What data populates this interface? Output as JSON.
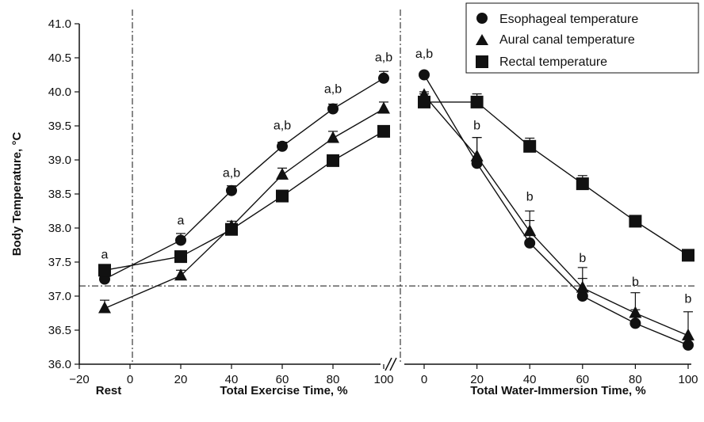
{
  "chart_data": {
    "type": "line",
    "ylabel": "Body Temperature, °C",
    "ylim": [
      36.0,
      41.0
    ],
    "yticks": [
      "36.0",
      "36.5",
      "37.0",
      "37.5",
      "38.0",
      "38.5",
      "39.0",
      "39.5",
      "40.0",
      "40.5",
      "41.0"
    ],
    "reference_line_y": 37.15,
    "legend": {
      "position": "top-right",
      "entries": [
        {
          "label": "Esophageal temperature",
          "marker": "circle"
        },
        {
          "label": "Aural canal temperature",
          "marker": "triangle"
        },
        {
          "label": "Rectal temperature",
          "marker": "square"
        }
      ]
    },
    "panels": [
      {
        "xlabel": "Total Exercise Time, %",
        "xlim": [
          -20,
          100
        ],
        "xticks": [
          "−20",
          "0",
          "20",
          "40",
          "60",
          "80",
          "100"
        ],
        "xtick_values": [
          -20,
          0,
          20,
          40,
          60,
          80,
          100
        ],
        "extra_label": "Rest",
        "x": [
          -10,
          20,
          40,
          60,
          80,
          100
        ],
        "series": [
          {
            "name": "Esophageal temperature",
            "marker": "circle",
            "values": [
              37.25,
              37.82,
              38.55,
              39.2,
              39.75,
              40.2
            ],
            "err": [
              0.05,
              0.1,
              0.07,
              0.06,
              0.07,
              0.1
            ]
          },
          {
            "name": "Aural canal temperature",
            "marker": "triangle",
            "values": [
              36.82,
              37.3,
              38.02,
              38.78,
              39.32,
              39.75
            ],
            "err": [
              0.12,
              0.08,
              0.08,
              0.1,
              0.1,
              0.1
            ]
          },
          {
            "name": "Rectal temperature",
            "marker": "square",
            "values": [
              37.38,
              37.58,
              37.98,
              38.47,
              38.99,
              39.42
            ],
            "err": [
              0.0,
              0.0,
              0.0,
              0.0,
              0.0,
              0.0
            ]
          }
        ],
        "annotations": [
          "a",
          "a",
          "a,b",
          "a,b",
          "a,b",
          "a,b"
        ],
        "annotation_y": [
          37.55,
          38.05,
          38.75,
          39.45,
          39.98,
          40.45
        ]
      },
      {
        "xlabel": "Total Water-Immersion Time, %",
        "xlim": [
          -5,
          100
        ],
        "xticks": [
          "0",
          "20",
          "40",
          "60",
          "80",
          "100"
        ],
        "xtick_values": [
          0,
          20,
          40,
          60,
          80,
          100
        ],
        "x": [
          0,
          20,
          40,
          60,
          80,
          100
        ],
        "series": [
          {
            "name": "Esophageal temperature",
            "marker": "circle",
            "values": [
              40.25,
              38.95,
              37.78,
              37.0,
              36.6,
              36.28
            ],
            "err": [
              0.0,
              0.38,
              0.33,
              0.26,
              0.2,
              0.0
            ]
          },
          {
            "name": "Aural canal temperature",
            "marker": "triangle",
            "values": [
              39.95,
              39.05,
              37.95,
              37.12,
              36.75,
              36.42
            ],
            "err": [
              0.05,
              0.28,
              0.3,
              0.3,
              0.3,
              0.35
            ]
          },
          {
            "name": "Rectal temperature",
            "marker": "square",
            "values": [
              39.85,
              39.85,
              39.2,
              38.65,
              38.1,
              37.6
            ],
            "err": [
              0.12,
              0.12,
              0.12,
              0.12,
              0.0,
              0.0
            ]
          }
        ],
        "annotations": [
          "a,b",
          "b",
          "b",
          "b",
          "b",
          "b"
        ],
        "annotation_y": [
          40.5,
          39.45,
          38.4,
          37.5,
          37.15,
          36.9
        ]
      }
    ]
  }
}
